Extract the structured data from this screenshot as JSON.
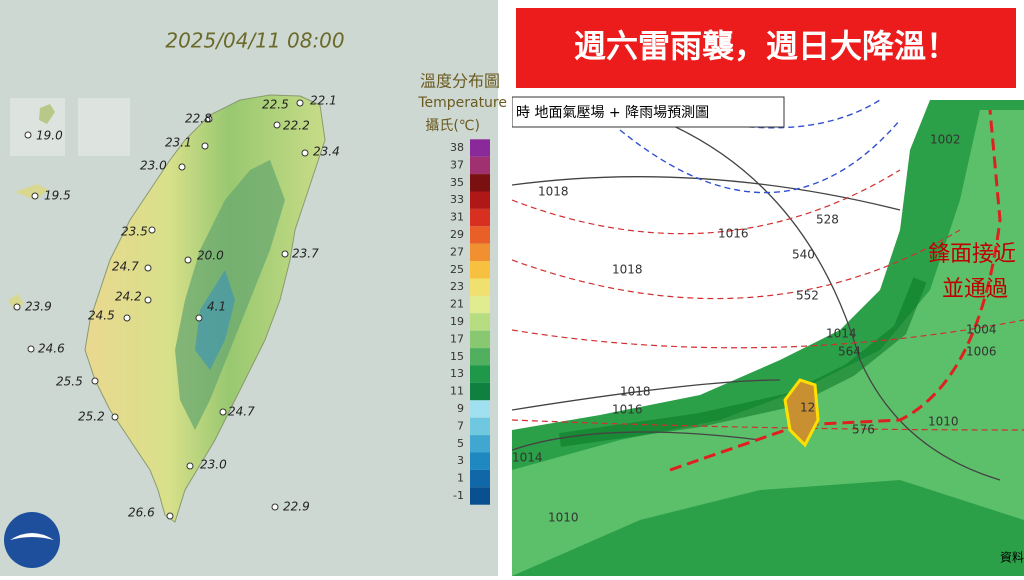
{
  "left_map": {
    "timestamp": "2025/04/11 08:00",
    "legend": {
      "title": "溫度分布圖",
      "subtitle": "Temperature",
      "unit": "攝氏(℃)",
      "ticks": [
        "38",
        "37",
        "35",
        "33",
        "31",
        "29",
        "27",
        "25",
        "23",
        "21",
        "19",
        "17",
        "15",
        "13",
        "11",
        "9",
        "7",
        "5",
        "3",
        "1",
        "-1"
      ]
    },
    "stations": [
      "22.8",
      "22.5",
      "22.1",
      "22.2",
      "23.1",
      "23.4",
      "23.0",
      "19.0",
      "19.5",
      "23.5",
      "23.7",
      "20.0",
      "24.7",
      "24.2",
      "24.5",
      "4.1",
      "23.9",
      "24.6",
      "25.5",
      "25.2",
      "24.7",
      "23.0",
      "26.6",
      "22.9"
    ]
  },
  "right_map": {
    "banner": "週六雷雨襲，週日大降溫！",
    "caption": "時  地面氣壓場 + 降雨場預測圖",
    "annotations": [
      "鋒面接近",
      "並通過"
    ],
    "contour_labels": [
      "1018",
      "1016",
      "1018",
      "1014",
      "1018",
      "1016",
      "1014",
      "1010",
      "1010",
      "1002",
      "1004",
      "1006",
      "528",
      "540",
      "552",
      "564",
      "576",
      "12"
    ],
    "footer": "資料"
  }
}
